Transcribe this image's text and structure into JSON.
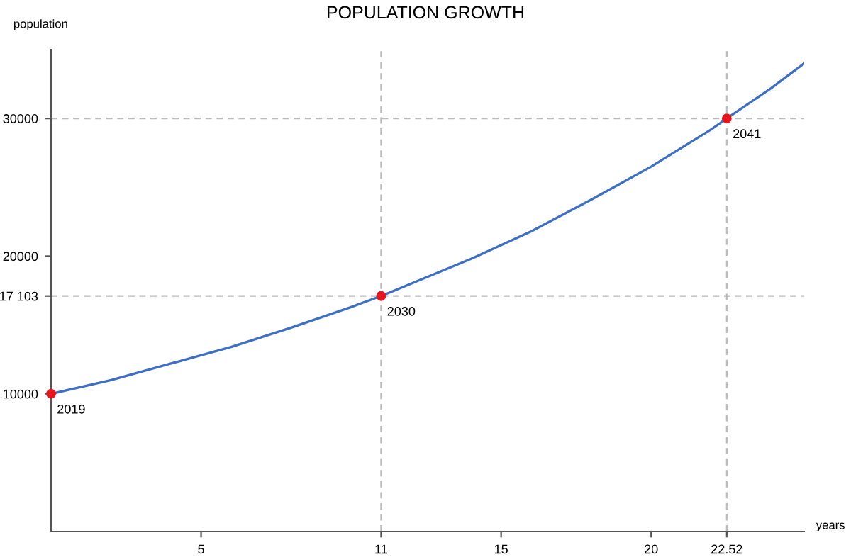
{
  "chart_data": {
    "type": "line",
    "title": "POPULATION GROWTH",
    "xlabel": "years",
    "ylabel": "population",
    "series": [
      {
        "color": "#3d6fc4",
        "x": [
          0,
          2,
          4,
          6,
          8,
          10,
          11,
          12,
          14,
          16,
          18,
          20,
          22,
          22.52,
          24,
          25.1
        ],
        "values": [
          10000,
          11000,
          12200,
          13400,
          14800,
          16300,
          17103,
          18000,
          19800,
          21800,
          24100,
          26500,
          29200,
          30000,
          32200,
          34000
        ]
      },
      {
        "type": "scatter",
        "color": "#e8141e",
        "x": [
          0,
          11,
          22.52
        ],
        "values": [
          10000,
          17103,
          30000
        ],
        "marker": "circle"
      }
    ],
    "annotations": [
      {
        "text": "2019",
        "x": 0,
        "y": 10000
      },
      {
        "text": "2030",
        "x": 11,
        "y": 17103
      },
      {
        "text": "2041",
        "x": 22.52,
        "y": 30000
      }
    ],
    "ref_lines": [
      {
        "axis": "x",
        "value": 11,
        "color": "#bbbbbb",
        "line_style": "dashed"
      },
      {
        "axis": "x",
        "value": 22.52,
        "color": "#bbbbbb",
        "line_style": "dashed"
      },
      {
        "axis": "y",
        "value": 17103,
        "color": "#bbbbbb",
        "line_style": "dashed"
      },
      {
        "axis": "y",
        "value": 30000,
        "color": "#bbbbbb",
        "line_style": "dashed"
      }
    ],
    "xlim": [
      0,
      25.1
    ],
    "ylim": [
      0,
      35000
    ],
    "xticks": [
      5,
      11,
      15,
      20,
      22.52
    ],
    "yticks": [
      10000,
      {
        "value": 17103,
        "label": "17 103"
      },
      20000,
      30000
    ],
    "grid": false,
    "legend": false
  }
}
